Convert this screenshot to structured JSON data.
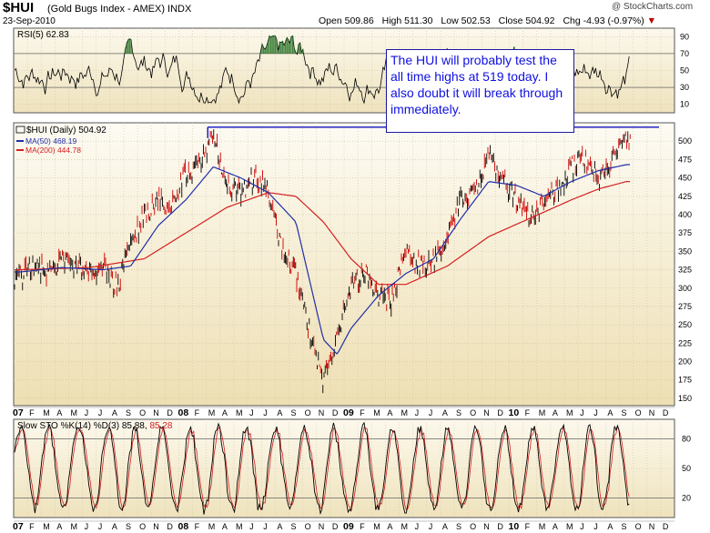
{
  "header": {
    "symbol": "$HUI",
    "subtitle": "(Gold Bugs Index - AMEX)  INDX",
    "date": "23-Sep-2010",
    "watermark": "@ StockCharts.com",
    "open": "Open 509.86",
    "high": "High 511.30",
    "low": "Low 502.53",
    "close": "Close 504.92",
    "change": "Chg -4.93 (-0.97%)"
  },
  "callout": {
    "text": "The HUI will probably test the all time highs at 519 today. I also doubt it will break through immediately."
  },
  "chart_data": [
    {
      "type": "line",
      "panel": "RSI",
      "legend": "RSI(5) 62.83",
      "yticks": [
        10,
        30,
        50,
        70,
        90
      ],
      "reference_lines": [
        30,
        70
      ],
      "ylim": [
        0,
        100
      ]
    },
    {
      "type": "candlestick",
      "panel": "price",
      "legend": [
        {
          "name": "$HUI (Daily) 504.92",
          "color": "#000000"
        },
        {
          "name": "MA(50) 468.19",
          "color": "#1f2fa8"
        },
        {
          "name": "MA(200) 444.78",
          "color": "#d42020"
        }
      ],
      "yticks": [
        150,
        175,
        200,
        225,
        250,
        275,
        300,
        325,
        350,
        375,
        400,
        425,
        450,
        475,
        500
      ],
      "ylim": [
        140,
        525
      ],
      "resistance_line": 519,
      "price_series": [
        {
          "t": "2007-01",
          "v": 315
        },
        {
          "t": "2007-02",
          "v": 335
        },
        {
          "t": "2007-03",
          "v": 318
        },
        {
          "t": "2007-04",
          "v": 338
        },
        {
          "t": "2007-05",
          "v": 330
        },
        {
          "t": "2007-06",
          "v": 318
        },
        {
          "t": "2007-07",
          "v": 330
        },
        {
          "t": "2007-08",
          "v": 300
        },
        {
          "t": "2007-09",
          "v": 360
        },
        {
          "t": "2007-10",
          "v": 400
        },
        {
          "t": "2007-11",
          "v": 420
        },
        {
          "t": "2007-12",
          "v": 410
        },
        {
          "t": "2008-01",
          "v": 455
        },
        {
          "t": "2008-02",
          "v": 470
        },
        {
          "t": "2008-03",
          "v": 505
        },
        {
          "t": "2008-04",
          "v": 440
        },
        {
          "t": "2008-05",
          "v": 430
        },
        {
          "t": "2008-06",
          "v": 450
        },
        {
          "t": "2008-07",
          "v": 430
        },
        {
          "t": "2008-08",
          "v": 350
        },
        {
          "t": "2008-09",
          "v": 320
        },
        {
          "t": "2008-10",
          "v": 240
        },
        {
          "t": "2008-11",
          "v": 175
        },
        {
          "t": "2008-12",
          "v": 230
        },
        {
          "t": "2009-01",
          "v": 300
        },
        {
          "t": "2009-02",
          "v": 320
        },
        {
          "t": "2009-03",
          "v": 290
        },
        {
          "t": "2009-04",
          "v": 285
        },
        {
          "t": "2009-05",
          "v": 350
        },
        {
          "t": "2009-06",
          "v": 330
        },
        {
          "t": "2009-07",
          "v": 335
        },
        {
          "t": "2009-08",
          "v": 370
        },
        {
          "t": "2009-09",
          "v": 420
        },
        {
          "t": "2009-10",
          "v": 430
        },
        {
          "t": "2009-11",
          "v": 480
        },
        {
          "t": "2009-12",
          "v": 450
        },
        {
          "t": "2010-01",
          "v": 420
        },
        {
          "t": "2010-02",
          "v": 395
        },
        {
          "t": "2010-03",
          "v": 420
        },
        {
          "t": "2010-04",
          "v": 430
        },
        {
          "t": "2010-05",
          "v": 465
        },
        {
          "t": "2010-06",
          "v": 475
        },
        {
          "t": "2010-07",
          "v": 445
        },
        {
          "t": "2010-08",
          "v": 470
        },
        {
          "t": "2010-09",
          "v": 505
        }
      ],
      "ma50_series": [
        {
          "t": "2007-01",
          "v": 322
        },
        {
          "t": "2007-04",
          "v": 328
        },
        {
          "t": "2007-07",
          "v": 325
        },
        {
          "t": "2007-09",
          "v": 330
        },
        {
          "t": "2007-11",
          "v": 385
        },
        {
          "t": "2008-01",
          "v": 420
        },
        {
          "t": "2008-03",
          "v": 465
        },
        {
          "t": "2008-05",
          "v": 450
        },
        {
          "t": "2008-07",
          "v": 430
        },
        {
          "t": "2008-09",
          "v": 390
        },
        {
          "t": "2008-10",
          "v": 310
        },
        {
          "t": "2008-11",
          "v": 230
        },
        {
          "t": "2008-12",
          "v": 210
        },
        {
          "t": "2009-01",
          "v": 245
        },
        {
          "t": "2009-03",
          "v": 290
        },
        {
          "t": "2009-05",
          "v": 320
        },
        {
          "t": "2009-07",
          "v": 340
        },
        {
          "t": "2009-09",
          "v": 395
        },
        {
          "t": "2009-11",
          "v": 445
        },
        {
          "t": "2010-01",
          "v": 440
        },
        {
          "t": "2010-03",
          "v": 425
        },
        {
          "t": "2010-05",
          "v": 445
        },
        {
          "t": "2010-07",
          "v": 460
        },
        {
          "t": "2010-09",
          "v": 468
        }
      ],
      "ma200_series": [
        {
          "t": "2007-01",
          "v": 325
        },
        {
          "t": "2007-06",
          "v": 328
        },
        {
          "t": "2007-10",
          "v": 340
        },
        {
          "t": "2008-01",
          "v": 375
        },
        {
          "t": "2008-04",
          "v": 410
        },
        {
          "t": "2008-07",
          "v": 430
        },
        {
          "t": "2008-09",
          "v": 425
        },
        {
          "t": "2008-11",
          "v": 390
        },
        {
          "t": "2009-01",
          "v": 340
        },
        {
          "t": "2009-03",
          "v": 305
        },
        {
          "t": "2009-05",
          "v": 305
        },
        {
          "t": "2009-08",
          "v": 330
        },
        {
          "t": "2009-11",
          "v": 370
        },
        {
          "t": "2010-02",
          "v": 395
        },
        {
          "t": "2010-05",
          "v": 420
        },
        {
          "t": "2010-07",
          "v": 435
        },
        {
          "t": "2010-09",
          "v": 445
        }
      ]
    },
    {
      "type": "line",
      "panel": "Slow STO",
      "legend_main": "Slow STO %K(14) %D(3) 85.88,",
      "legend_d": "85.28",
      "yticks": [
        20,
        50,
        80
      ],
      "reference_lines": [
        20,
        80
      ],
      "ylim": [
        0,
        100
      ]
    }
  ],
  "x_axis": {
    "start": "2007-01",
    "labels": [
      "07",
      "F",
      "M",
      "A",
      "M",
      "J",
      "J",
      "A",
      "S",
      "O",
      "N",
      "D",
      "08",
      "F",
      "M",
      "A",
      "M",
      "J",
      "J",
      "A",
      "S",
      "O",
      "N",
      "D",
      "09",
      "F",
      "M",
      "A",
      "M",
      "J",
      "J",
      "A",
      "S",
      "O",
      "N",
      "D",
      "10",
      "F",
      "M",
      "A",
      "M",
      "J",
      "J",
      "A",
      "S",
      "O",
      "N",
      "D"
    ],
    "bold_labels": [
      "07",
      "08",
      "09",
      "10"
    ]
  },
  "colors": {
    "price_up": "#000000",
    "price_down": "#cc0000",
    "ma50": "#1f2fa8",
    "ma200": "#d42020",
    "rsi_fill": "#1a6b1a",
    "callout_text": "#1010e0",
    "resistance": "#1010c0"
  }
}
